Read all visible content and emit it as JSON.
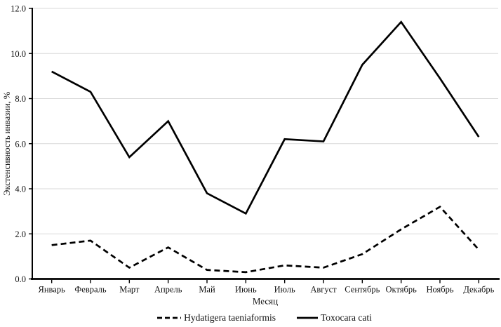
{
  "chart_data": {
    "type": "line",
    "categories": [
      "Январь",
      "Февраль",
      "Март",
      "Апрель",
      "Май",
      "Июнь",
      "Июль",
      "Август",
      "Сентябрь",
      "Октябрь",
      "Ноябрь",
      "Декабрь"
    ],
    "series": [
      {
        "name": "Hydatigera taeniaformis",
        "style": "dashed",
        "values": [
          1.5,
          1.7,
          0.5,
          1.4,
          0.4,
          0.3,
          0.6,
          0.5,
          1.1,
          2.2,
          3.2,
          1.3
        ]
      },
      {
        "name": "Toxocara cati",
        "style": "solid",
        "values": [
          9.2,
          8.3,
          5.4,
          7.0,
          3.8,
          2.9,
          6.2,
          6.1,
          9.5,
          11.4,
          8.9,
          6.3
        ]
      }
    ],
    "title": "",
    "xlabel": "Месяц",
    "ylabel": "Экстенсивность инвазии, %",
    "ylim": [
      0,
      12
    ],
    "ytick_step": 2,
    "ytick_labels": [
      "0.0",
      "2.0",
      "4.0",
      "6.0",
      "8.0",
      "10.0",
      "12.0"
    ],
    "grid": true,
    "legend_position": "bottom"
  },
  "colors": {
    "series": "#000000",
    "grid": "#d9d9d9",
    "axis": "#000000",
    "text": "#111111",
    "background": "#ffffff"
  }
}
